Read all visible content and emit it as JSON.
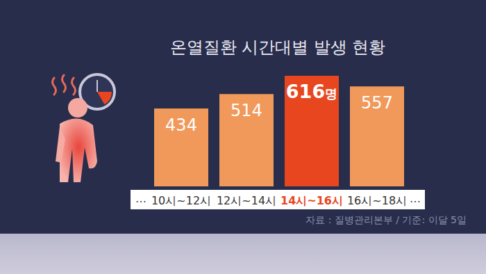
{
  "chart_data": {
    "type": "bar",
    "title": "온열질환 시간대별 발생 현황",
    "categories": [
      "10시~12시",
      "12시~14시",
      "14시~16시",
      "16시~18시"
    ],
    "values": [
      434,
      514,
      616,
      557
    ],
    "value_labels": [
      "434",
      "514",
      "616명",
      "557"
    ],
    "colors": [
      "#f0995a",
      "#f0995a",
      "#e8461e",
      "#f0995a"
    ],
    "ylim": [
      0,
      616
    ],
    "yticks": [
      0,
      616
    ],
    "grid": false,
    "data_labels": true,
    "tick_labels": "x",
    "annotations": [
      "…",
      "…"
    ],
    "source": "자료 : 질병관리본부 / 기준: 이달 5일"
  }
}
